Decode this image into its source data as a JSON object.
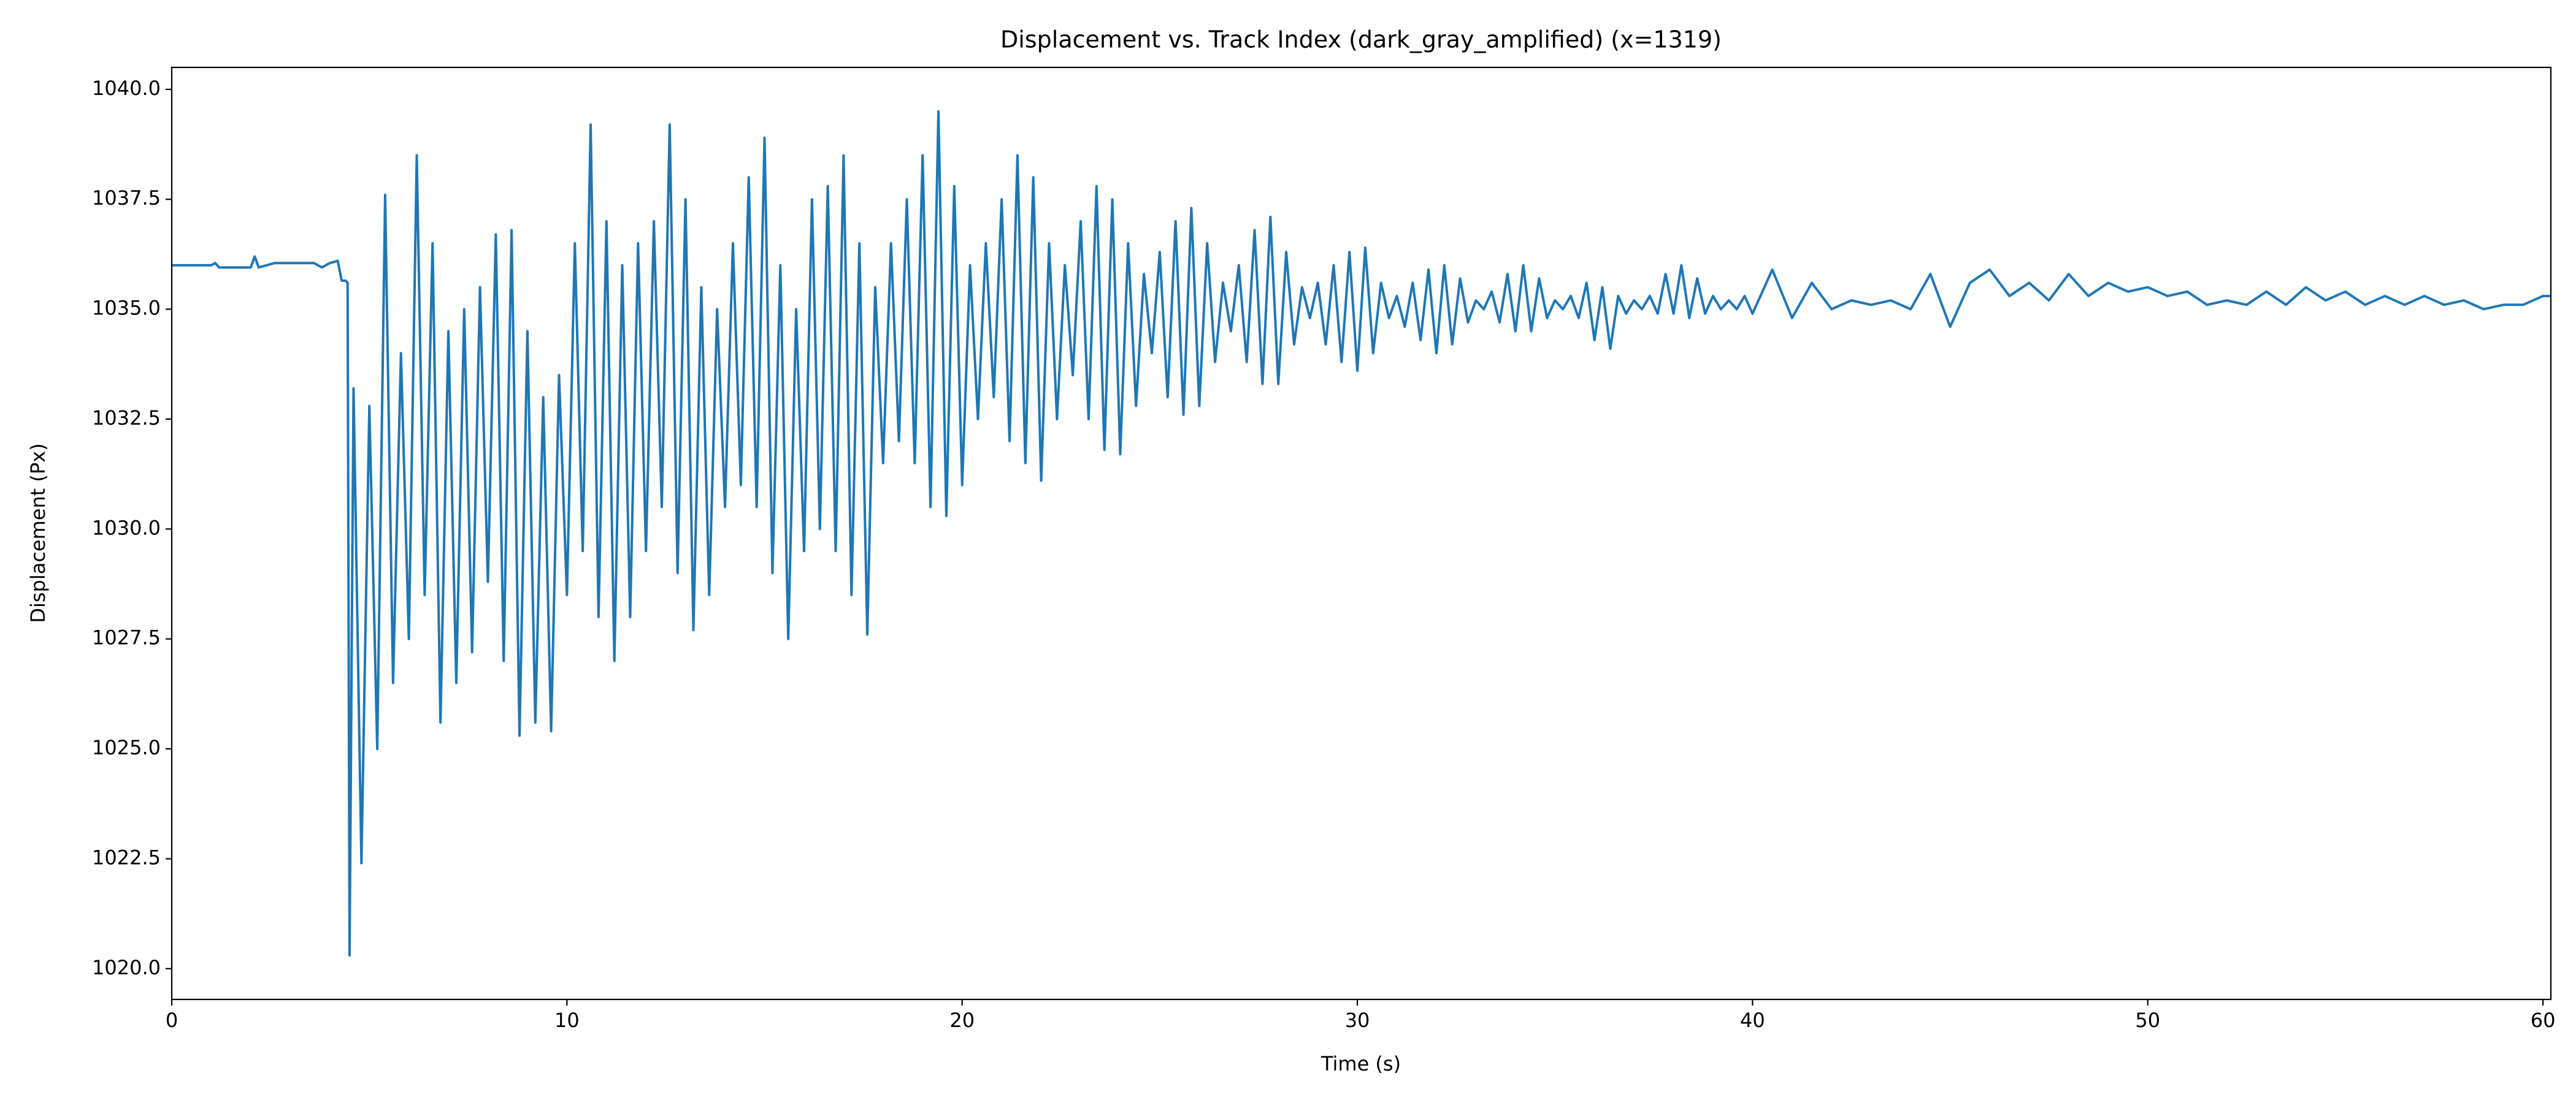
{
  "chart_data": {
    "type": "line",
    "title": "Displacement vs. Track Index (dark_gray_amplified) (x=1319)",
    "xlabel": "Time (s)",
    "ylabel": "Displacement (Px)",
    "color": "#1f77b4",
    "xlim": [
      0,
      60.2
    ],
    "ylim": [
      1019.3,
      1040.5
    ],
    "xticks": [
      0,
      10,
      20,
      30,
      40,
      50,
      60
    ],
    "yticks": [
      {
        "value": 1020,
        "label": "1020.0"
      },
      {
        "value": 1022.5,
        "label": "1022.5"
      },
      {
        "value": 1025,
        "label": "1025.0"
      },
      {
        "value": 1027.5,
        "label": "1027.5"
      },
      {
        "value": 1030,
        "label": "1030.0"
      },
      {
        "value": 1032.5,
        "label": "1032.5"
      },
      {
        "value": 1035,
        "label": "1035.0"
      },
      {
        "value": 1037.5,
        "label": "1037.5"
      },
      {
        "value": 1040,
        "label": "1040.0"
      }
    ],
    "grid": false,
    "x": [
      0,
      1,
      1.1,
      1.2,
      2,
      2.1,
      2.2,
      2.6,
      3.6,
      3.8,
      4,
      4.2,
      4.3,
      4.4,
      4.45,
      4.5,
      4.6,
      4.8,
      5,
      5.2,
      5.4,
      5.6,
      5.8,
      6,
      6.2,
      6.4,
      6.6,
      6.8,
      7,
      7.2,
      7.4,
      7.6,
      7.8,
      8,
      8.2,
      8.4,
      8.6,
      8.8,
      9,
      9.2,
      9.4,
      9.6,
      9.8,
      10,
      10.2,
      10.4,
      10.6,
      10.8,
      11,
      11.2,
      11.4,
      11.6,
      11.8,
      12,
      12.2,
      12.4,
      12.6,
      12.8,
      13,
      13.2,
      13.4,
      13.6,
      13.8,
      14,
      14.2,
      14.4,
      14.6,
      14.8,
      15,
      15.2,
      15.4,
      15.6,
      15.8,
      16,
      16.2,
      16.4,
      16.6,
      16.8,
      17,
      17.2,
      17.4,
      17.6,
      17.8,
      18,
      18.2,
      18.4,
      18.6,
      18.8,
      19,
      19.2,
      19.4,
      19.6,
      19.8,
      20,
      20.2,
      20.4,
      20.6,
      20.8,
      21,
      21.2,
      21.4,
      21.6,
      21.8,
      22,
      22.2,
      22.4,
      22.6,
      22.8,
      23,
      23.2,
      23.4,
      23.6,
      23.8,
      24,
      24.2,
      24.4,
      24.6,
      24.8,
      25,
      25.2,
      25.4,
      25.6,
      25.8,
      26,
      26.2,
      26.4,
      26.6,
      26.8,
      27,
      27.2,
      27.4,
      27.6,
      27.8,
      28,
      28.2,
      28.4,
      28.6,
      28.8,
      29,
      29.2,
      29.4,
      29.6,
      29.8,
      30,
      30.2,
      30.4,
      30.6,
      30.8,
      31,
      31.2,
      31.4,
      31.6,
      31.8,
      32,
      32.2,
      32.4,
      32.6,
      32.8,
      33,
      33.2,
      33.4,
      33.6,
      33.8,
      34,
      34.2,
      34.4,
      34.6,
      34.8,
      35,
      35.2,
      35.4,
      35.6,
      35.8,
      36,
      36.2,
      36.4,
      36.6,
      36.8,
      37,
      37.2,
      37.4,
      37.6,
      37.8,
      38,
      38.2,
      38.4,
      38.6,
      38.8,
      39,
      39.2,
      39.4,
      39.6,
      39.8,
      40,
      40.5,
      41,
      41.5,
      42,
      42.5,
      43,
      43.5,
      44,
      44.5,
      45,
      45.5,
      46,
      46.5,
      47,
      47.5,
      48,
      48.5,
      49,
      49.5,
      50,
      50.5,
      51,
      51.5,
      52,
      52.5,
      53,
      53.5,
      54,
      54.5,
      55,
      55.5,
      56,
      56.5,
      57,
      57.5,
      58,
      58.5,
      59,
      59.5,
      60,
      60.2
    ],
    "values": [
      1036.0,
      1036.0,
      1036.05,
      1035.95,
      1035.95,
      1036.2,
      1035.95,
      1036.05,
      1036.05,
      1035.95,
      1036.05,
      1036.1,
      1035.65,
      1035.65,
      1035.6,
      1020.3,
      1033.2,
      1022.4,
      1032.8,
      1025.0,
      1037.6,
      1026.5,
      1034.0,
      1027.5,
      1038.5,
      1028.5,
      1036.5,
      1025.6,
      1034.5,
      1026.5,
      1035.0,
      1027.2,
      1035.5,
      1028.8,
      1036.7,
      1027.0,
      1036.8,
      1025.3,
      1034.5,
      1025.6,
      1033.0,
      1025.4,
      1033.5,
      1028.5,
      1036.5,
      1029.5,
      1039.2,
      1028.0,
      1037.0,
      1027.0,
      1036.0,
      1028.0,
      1036.5,
      1029.5,
      1037.0,
      1030.5,
      1039.2,
      1029.0,
      1037.5,
      1027.7,
      1035.5,
      1028.5,
      1035.0,
      1030.5,
      1036.5,
      1031.0,
      1038.0,
      1030.5,
      1038.9,
      1029.0,
      1036.0,
      1027.5,
      1035.0,
      1029.5,
      1037.5,
      1030.0,
      1037.8,
      1029.5,
      1038.5,
      1028.5,
      1036.5,
      1027.6,
      1035.5,
      1031.5,
      1036.5,
      1032.0,
      1037.5,
      1031.5,
      1038.5,
      1030.5,
      1039.5,
      1030.3,
      1037.8,
      1031.0,
      1036.0,
      1032.5,
      1036.5,
      1033.0,
      1037.5,
      1032.0,
      1038.5,
      1031.5,
      1038.0,
      1031.1,
      1036.5,
      1032.5,
      1036.0,
      1033.5,
      1037.0,
      1032.5,
      1037.8,
      1031.8,
      1037.5,
      1031.7,
      1036.5,
      1032.8,
      1035.8,
      1034.0,
      1036.3,
      1033.0,
      1037.0,
      1032.6,
      1037.3,
      1032.8,
      1036.5,
      1033.8,
      1035.6,
      1034.5,
      1036.0,
      1033.8,
      1036.8,
      1033.3,
      1037.1,
      1033.3,
      1036.3,
      1034.2,
      1035.5,
      1034.8,
      1035.6,
      1034.2,
      1036.0,
      1033.8,
      1036.3,
      1033.6,
      1036.4,
      1034.0,
      1035.6,
      1034.8,
      1035.3,
      1034.6,
      1035.6,
      1034.3,
      1035.9,
      1034.0,
      1036.0,
      1034.2,
      1035.7,
      1034.7,
      1035.2,
      1035.0,
      1035.4,
      1034.7,
      1035.8,
      1034.5,
      1036.0,
      1034.5,
      1035.7,
      1034.8,
      1035.2,
      1035.0,
      1035.3,
      1034.8,
      1035.6,
      1034.3,
      1035.5,
      1034.1,
      1035.3,
      1034.9,
      1035.2,
      1035.0,
      1035.3,
      1034.9,
      1035.8,
      1034.9,
      1036.0,
      1034.8,
      1035.7,
      1034.9,
      1035.3,
      1035.0,
      1035.2,
      1035.0,
      1035.3,
      1034.9,
      1035.9,
      1034.8,
      1035.6,
      1035.0,
      1035.2,
      1035.1,
      1035.2,
      1035.0,
      1035.8,
      1034.6,
      1035.6,
      1035.9,
      1035.3,
      1035.6,
      1035.2,
      1035.8,
      1035.3,
      1035.6,
      1035.4,
      1035.5,
      1035.3,
      1035.4,
      1035.1,
      1035.2,
      1035.1,
      1035.4,
      1035.1,
      1035.5,
      1035.2,
      1035.4,
      1035.1,
      1035.3,
      1035.1,
      1035.3,
      1035.1,
      1035.2,
      1035.0,
      1035.1,
      1035.1,
      1035.3,
      1035.3
    ]
  }
}
